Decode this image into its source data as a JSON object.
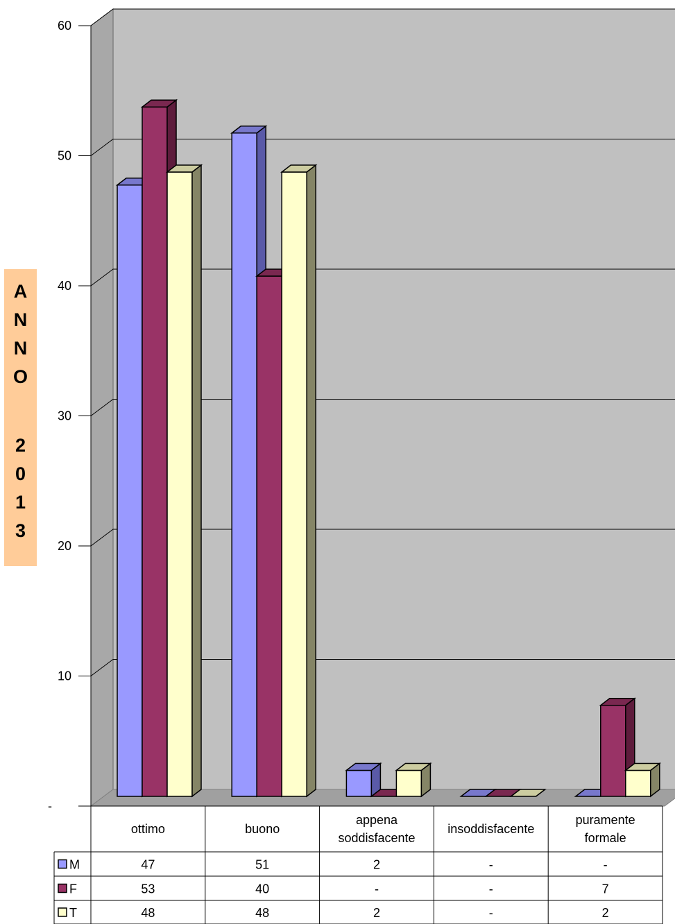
{
  "side_label": {
    "chars": [
      "A",
      "N",
      "N",
      "O"
    ],
    "chars2": [
      "2",
      "0",
      "1",
      "3"
    ]
  },
  "chart_data": {
    "type": "bar",
    "categories": [
      {
        "line1": "ottimo",
        "line2": ""
      },
      {
        "line1": "buono",
        "line2": ""
      },
      {
        "line1": "appena",
        "line2": "soddisfacente"
      },
      {
        "line1": "insoddisfacente",
        "line2": ""
      },
      {
        "line1": "puramente",
        "line2": "formale"
      }
    ],
    "series": [
      {
        "name": "M",
        "values": [
          47,
          51,
          2,
          0,
          0
        ],
        "table": [
          "47",
          "51",
          "2",
          "-",
          "-"
        ],
        "color": "#9999ff",
        "side": "#5a5aa8",
        "top": "#7878cc"
      },
      {
        "name": "F",
        "values": [
          53,
          40,
          0,
          0,
          7
        ],
        "table": [
          "53",
          "40",
          "-",
          "-",
          "7"
        ],
        "color": "#993366",
        "side": "#5e1c3c",
        "top": "#7a2850"
      },
      {
        "name": "T",
        "values": [
          48,
          48,
          2,
          0,
          2
        ],
        "table": [
          "48",
          "48",
          "2",
          "-",
          "2"
        ],
        "color": "#ffffcc",
        "side": "#858566",
        "top": "#cccca0"
      }
    ],
    "yticks": [
      "-",
      "10",
      "20",
      "30",
      "40",
      "50",
      "60"
    ],
    "ylim": [
      0,
      60
    ],
    "grid": true,
    "legend": "table"
  }
}
